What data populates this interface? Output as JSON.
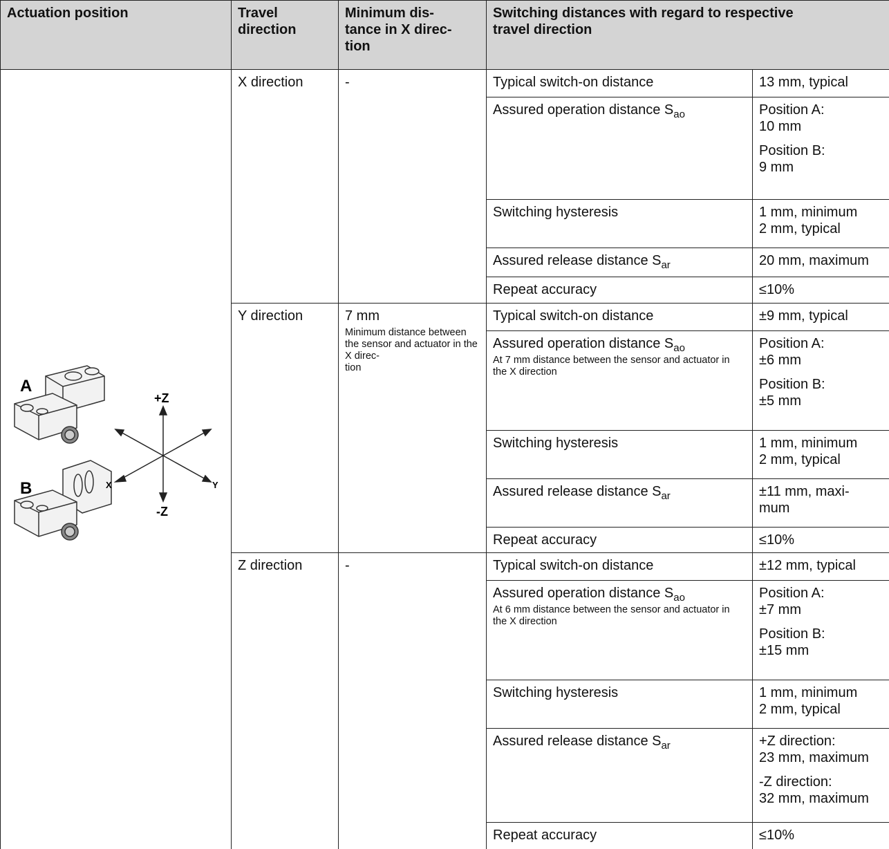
{
  "header": {
    "actuation_position": "Actuation position",
    "travel_direction": "Travel\ndirection",
    "minimum_distance": "Minimum dis-\ntance in X direc-\ntion",
    "switching_distances": "Switching distances with regard to respective\ntravel direction"
  },
  "illustration": {
    "label_a": "A",
    "label_b": "B",
    "axis_plus_z": "+Z",
    "axis_minus_z": "-Z",
    "axis_x": "X",
    "axis_y": "Y"
  },
  "sections": [
    {
      "direction": "X direction",
      "minimum_distance": "-",
      "rows": [
        {
          "parameter": "Typical switch-on distance",
          "values": [
            "13 mm, typical"
          ]
        },
        {
          "parameter": "Assured operation distance S",
          "subscript": "ao",
          "values": [
            "Position A:\n10 mm",
            "Position B:\n9 mm"
          ]
        },
        {
          "parameter": "Switching hysteresis",
          "values": [
            "1 mm, minimum\n2 mm, typical"
          ]
        },
        {
          "parameter": "Assured release distance S",
          "subscript": "ar",
          "values": [
            "20 mm, maximum"
          ]
        },
        {
          "parameter": "Repeat accuracy",
          "values": [
            "≤10%"
          ]
        }
      ]
    },
    {
      "direction": "Y direction",
      "minimum_distance": "7 mm",
      "minimum_distance_note": "Minimum distance between the sensor and actuator in the X direc-\ntion",
      "rows": [
        {
          "parameter": "Typical switch-on distance",
          "values": [
            "±9 mm, typical"
          ]
        },
        {
          "parameter": "Assured operation distance S",
          "subscript": "ao",
          "note": "At 7 mm distance between the sensor and actuator in the X direction",
          "values": [
            "Position A:\n±6 mm",
            "Position B:\n±5 mm"
          ]
        },
        {
          "parameter": "Switching hysteresis",
          "values": [
            "1 mm, minimum\n2 mm, typical"
          ]
        },
        {
          "parameter": "Assured release distance S",
          "subscript": "ar",
          "values": [
            "±11 mm, maxi-\nmum"
          ]
        },
        {
          "parameter": "Repeat accuracy",
          "values": [
            "≤10%"
          ]
        }
      ]
    },
    {
      "direction": "Z direction",
      "minimum_distance": "-",
      "rows": [
        {
          "parameter": "Typical switch-on distance",
          "values": [
            "±12 mm, typical"
          ]
        },
        {
          "parameter": "Assured operation distance S",
          "subscript": "ao",
          "note": "At 6 mm distance between the sensor and actuator in the X direction",
          "values": [
            "Position A:\n±7 mm",
            "Position B:\n±15 mm"
          ]
        },
        {
          "parameter": "Switching hysteresis",
          "values": [
            "1 mm, minimum\n2 mm, typical"
          ]
        },
        {
          "parameter": "Assured release distance S",
          "subscript": "ar",
          "values": [
            "+Z direction:\n23 mm, maximum",
            "-Z direction:\n32 mm, maximum"
          ]
        },
        {
          "parameter": "Repeat accuracy",
          "values": [
            "≤10%"
          ]
        }
      ]
    }
  ]
}
